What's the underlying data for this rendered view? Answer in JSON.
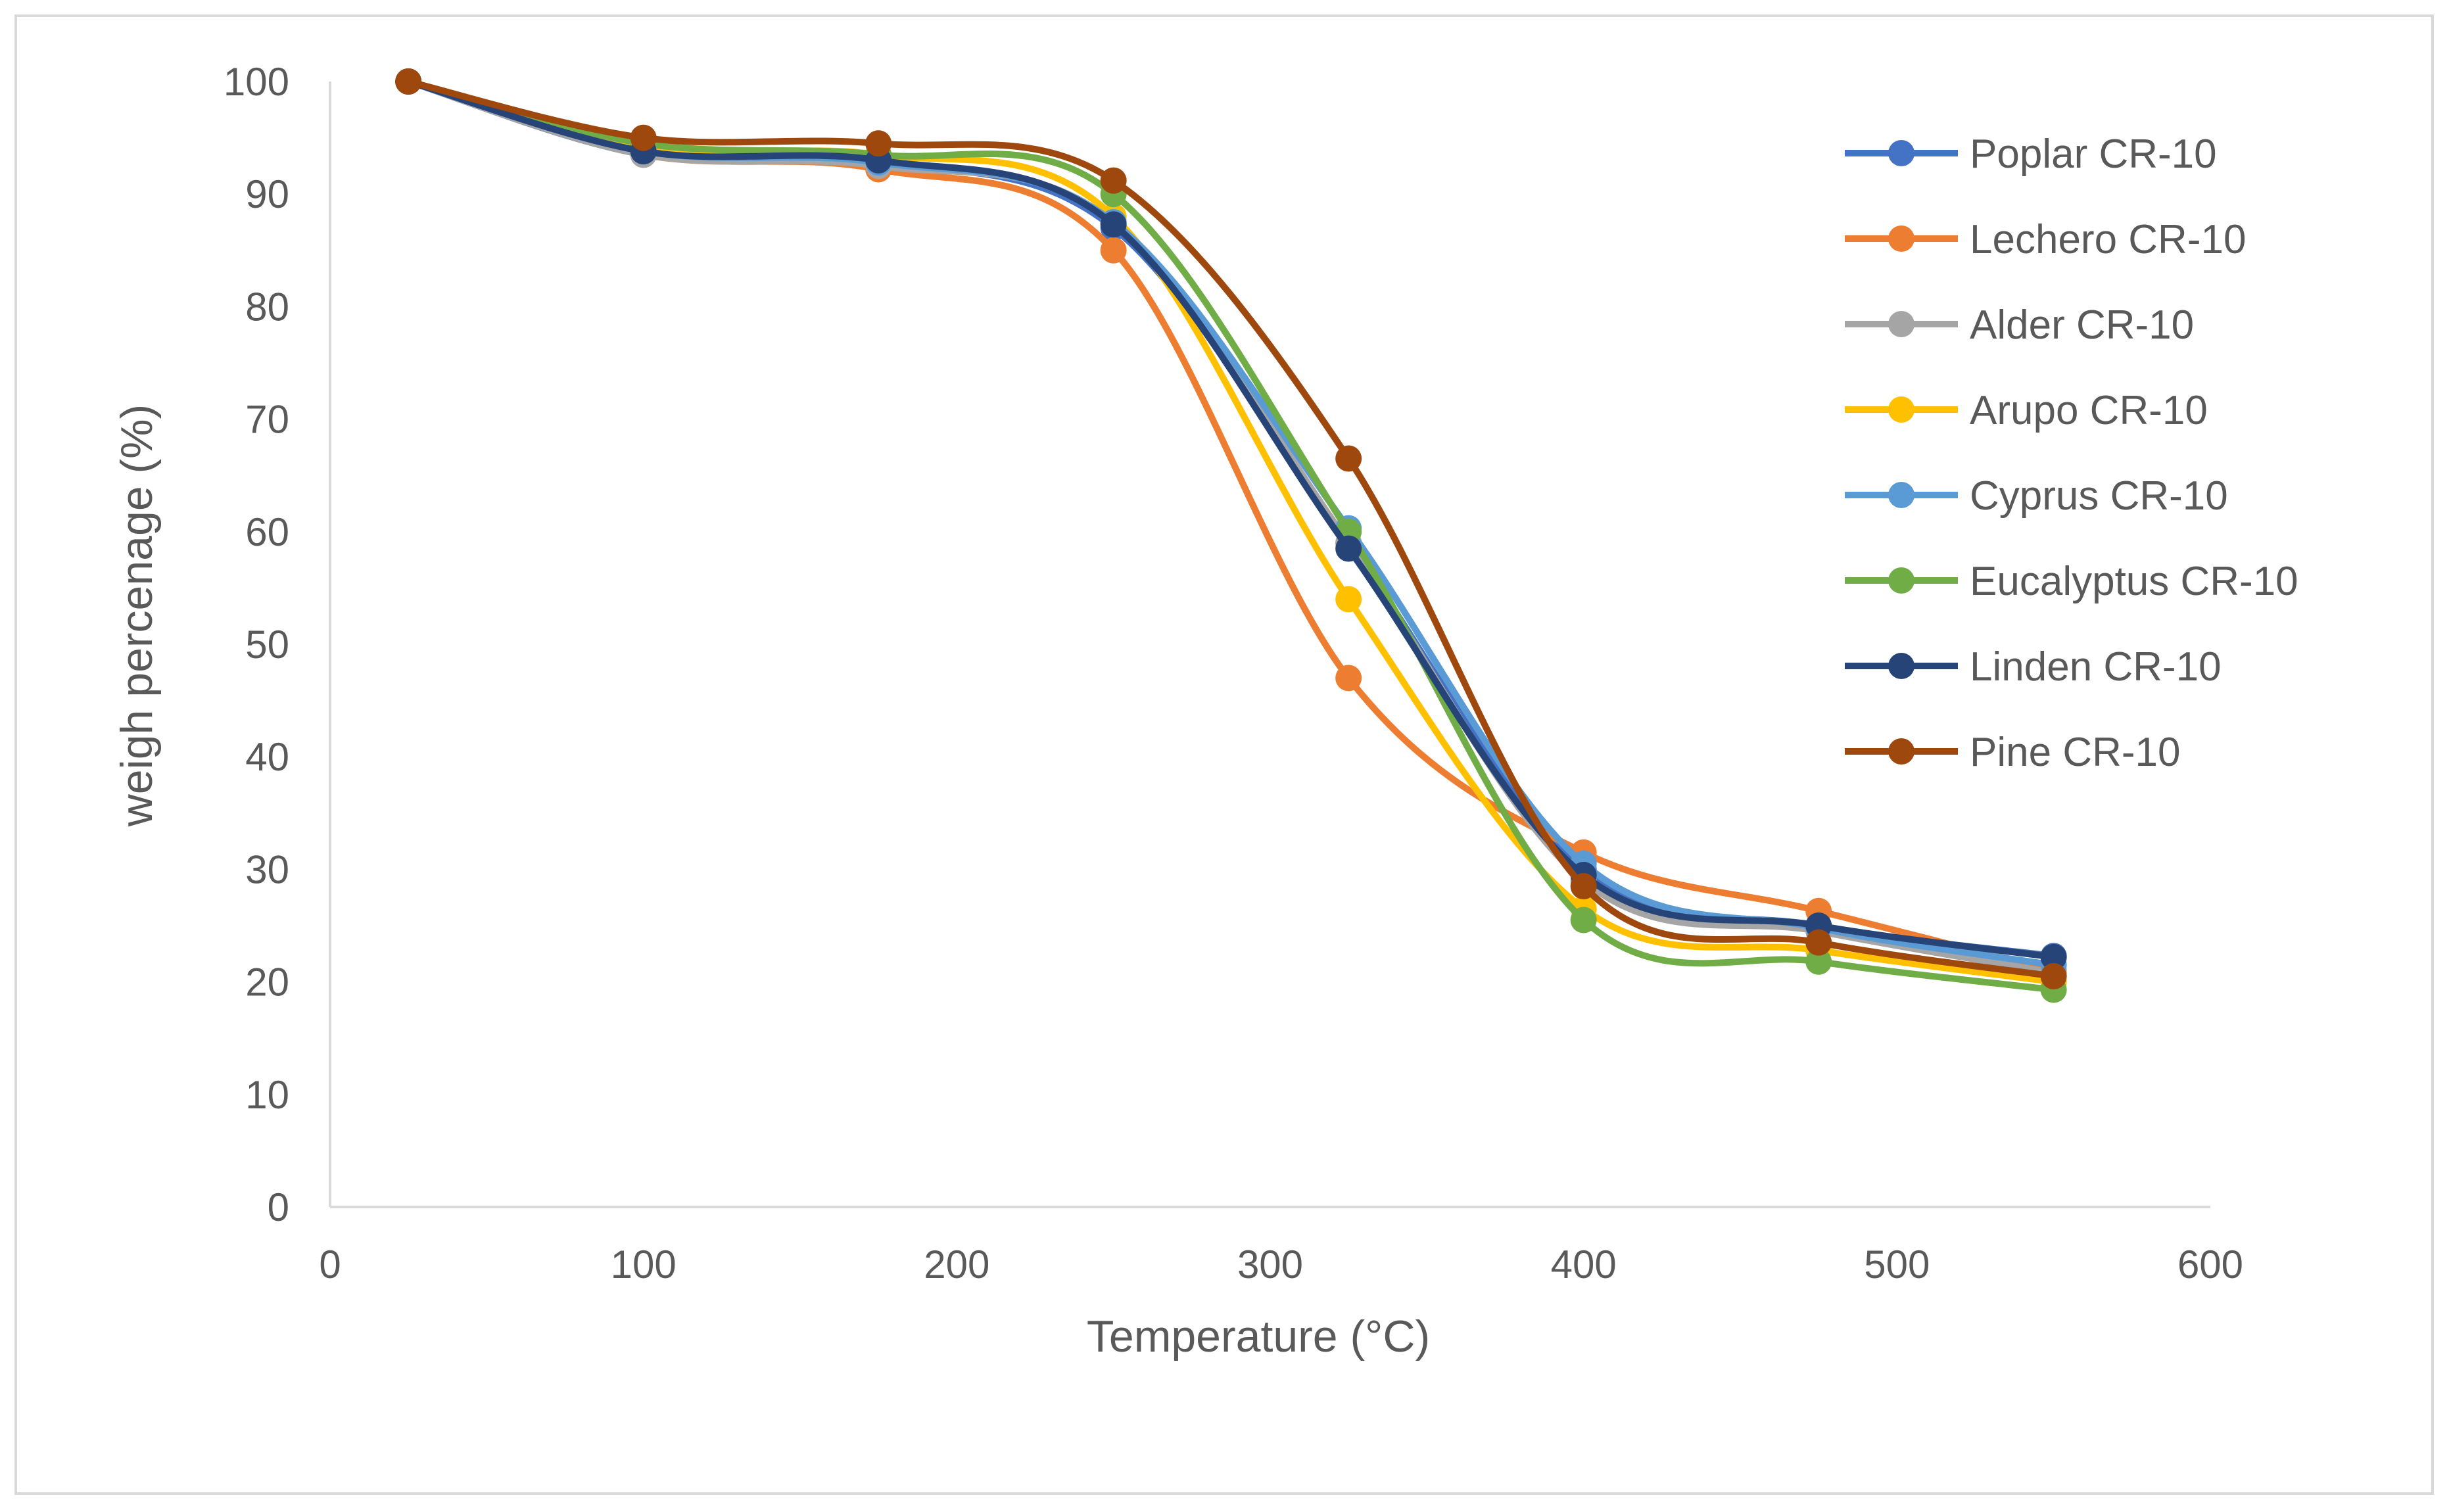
{
  "chart_data": {
    "type": "line",
    "title": "",
    "xlabel": "Temperature (°C)",
    "ylabel": "weigh percenage (%)",
    "xlim": [
      0,
      600
    ],
    "ylim": [
      0,
      100
    ],
    "xticks": [
      0,
      100,
      200,
      300,
      400,
      500,
      600
    ],
    "yticks": [
      0,
      10,
      20,
      30,
      40,
      50,
      60,
      70,
      80,
      90,
      100
    ],
    "grid": false,
    "legend_position": "top-right",
    "x": [
      25,
      100,
      175,
      250,
      325,
      400,
      475,
      550
    ],
    "series": [
      {
        "name": "Poplar CR-10",
        "color": "#4472C4",
        "values": [
          100,
          93.5,
          92.8,
          87,
          59,
          30,
          25,
          22.3
        ]
      },
      {
        "name": "Lechero CR-10",
        "color": "#ED7D31",
        "values": [
          100,
          93.5,
          92.2,
          85,
          47,
          31.5,
          26.3,
          21
        ]
      },
      {
        "name": "Alder CR-10",
        "color": "#A5A5A5",
        "values": [
          100,
          93.5,
          92.5,
          87.5,
          59,
          29,
          24.5,
          20.8
        ]
      },
      {
        "name": "Arupo CR-10",
        "color": "#FFC000",
        "values": [
          100,
          94,
          93.5,
          88,
          54,
          26.5,
          22.8,
          20
        ]
      },
      {
        "name": "Cyprus CR-10",
        "color": "#5B9BD5",
        "values": [
          100,
          93.8,
          92.8,
          87.5,
          60.3,
          30.5,
          24.8,
          21.5
        ]
      },
      {
        "name": "Eucalyptus CR-10",
        "color": "#70AD47",
        "values": [
          100,
          94.5,
          93.5,
          90,
          60,
          25.5,
          21.8,
          19.3
        ]
      },
      {
        "name": "Linden CR-10",
        "color": "#264478",
        "values": [
          100,
          93.8,
          93,
          87.3,
          58.5,
          29.5,
          25,
          22.2
        ]
      },
      {
        "name": "Pine CR-10",
        "color": "#9E480E",
        "values": [
          100,
          95,
          94.5,
          91.2,
          66.5,
          28.5,
          23.5,
          20.5
        ]
      }
    ]
  }
}
